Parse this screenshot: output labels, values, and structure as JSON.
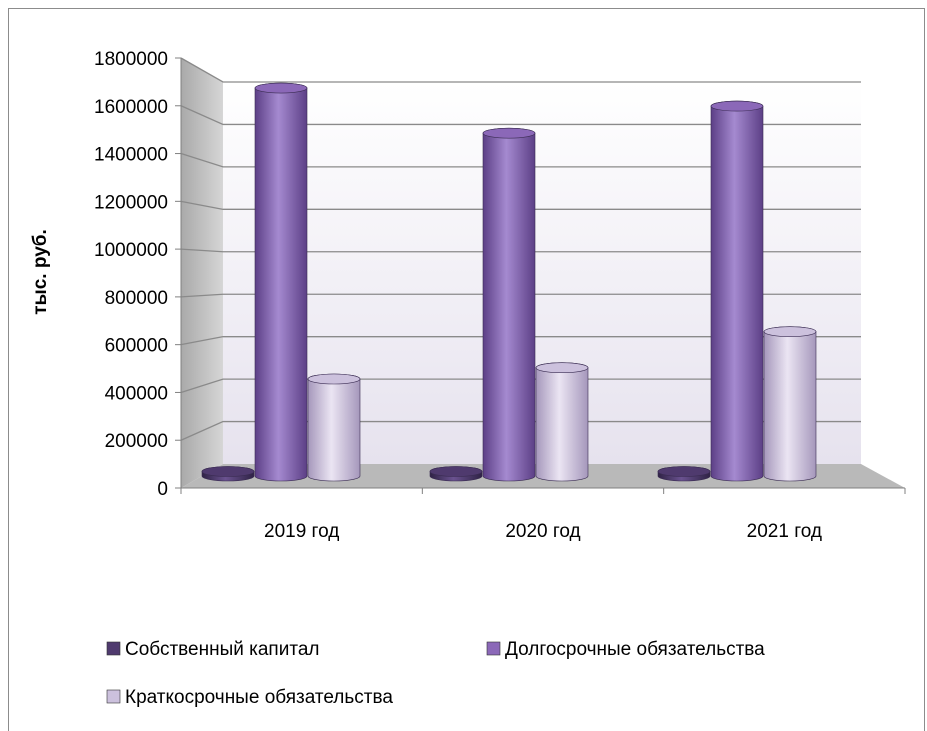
{
  "chart_data": {
    "type": "bar",
    "ylabel": "тыс. руб.",
    "ylim": [
      0,
      1800000
    ],
    "yticks": [
      0,
      200000,
      400000,
      600000,
      800000,
      1000000,
      1200000,
      1400000,
      1600000,
      1800000
    ],
    "categories": [
      "2019 год",
      "2020 год",
      "2021 год"
    ],
    "series": [
      {
        "name": "Собственный капитал",
        "values": [
          20000,
          20000,
          20000
        ],
        "color": "#4f3a6e"
      },
      {
        "name": "Долгосрочные обязательства",
        "values": [
          1720000,
          1520000,
          1640000
        ],
        "color": "#8b68b8"
      },
      {
        "name": "Краткосрочные обязательства",
        "values": [
          430000,
          480000,
          640000
        ],
        "color": "#ccc1dd"
      }
    ],
    "legend_position": "bottom",
    "grid": true,
    "style": "3d-cylinder"
  }
}
